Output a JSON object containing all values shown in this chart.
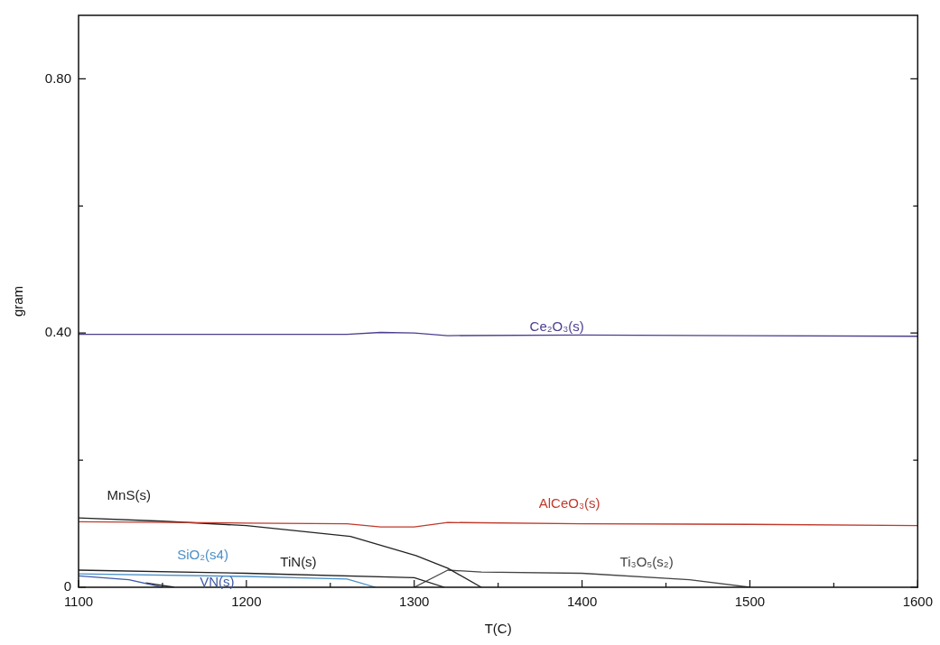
{
  "chart_data": {
    "type": "line",
    "xlabel": "T(C)",
    "ylabel": "gram",
    "xlim": [
      1100,
      1600
    ],
    "xticks": [
      1100,
      {
        "value": 1150,
        "label": null
      },
      1200,
      {
        "value": 1250,
        "label": null
      },
      1300,
      {
        "value": 1350,
        "label": null
      },
      1400,
      {
        "value": 1450,
        "label": null
      },
      1500,
      {
        "value": 1550,
        "label": null
      },
      1600
    ],
    "ylim": [
      0,
      0.9
    ],
    "yticks": [
      {
        "value": 0,
        "label": "0"
      },
      {
        "value": 0.2,
        "label": null
      },
      {
        "value": 0.4,
        "label": "0.40"
      },
      {
        "value": 0.6,
        "label": null
      },
      {
        "value": 0.8,
        "label": "0.80"
      }
    ],
    "grid": false,
    "legend": false,
    "marker": "none",
    "line_style": "solid",
    "series": [
      {
        "name": "Ce₂O₃(s)",
        "color": "#4a3f8f",
        "x": [
          1100,
          1200,
          1260,
          1280,
          1300,
          1320,
          1400,
          1500,
          1600
        ],
        "values": [
          0.398,
          0.398,
          0.398,
          0.401,
          0.4,
          0.396,
          0.397,
          0.396,
          0.395
        ]
      },
      {
        "name": "AlCeO₃(s)",
        "color": "#c0392b",
        "x": [
          1100,
          1200,
          1260,
          1280,
          1300,
          1320,
          1400,
          1500,
          1600
        ],
        "values": [
          0.103,
          0.101,
          0.1,
          0.095,
          0.095,
          0.102,
          0.1,
          0.099,
          0.097
        ]
      },
      {
        "name": "MnS(s)",
        "color": "#222222",
        "x": [
          1100,
          1150,
          1200,
          1262,
          1301,
          1320,
          1340
        ],
        "values": [
          0.109,
          0.104,
          0.097,
          0.08,
          0.05,
          0.03,
          0
        ]
      },
      {
        "name": "TiN(s)",
        "color": "#222222",
        "x": [
          1100,
          1200,
          1300,
          1318
        ],
        "values": [
          0.027,
          0.022,
          0.015,
          0
        ]
      },
      {
        "name": "Ti₃O₅(s₂)",
        "color": "#444444",
        "x": [
          1300,
          1320,
          1340,
          1400,
          1464,
          1500
        ],
        "values": [
          0,
          0.027,
          0.024,
          0.022,
          0.012,
          0
        ]
      },
      {
        "name": "SiO₂(s4)",
        "color": "#4a90c8",
        "x": [
          1100,
          1200,
          1260,
          1277
        ],
        "values": [
          0.021,
          0.017,
          0.013,
          0
        ]
      },
      {
        "name": "VN(s)",
        "color": "#3f5aa8",
        "x": [
          1100,
          1130,
          1150
        ],
        "values": [
          0.018,
          0.012,
          0
        ]
      },
      {
        "color": "#222222",
        "x": [
          1140,
          1157
        ],
        "values": [
          0.007,
          0
        ]
      }
    ]
  }
}
